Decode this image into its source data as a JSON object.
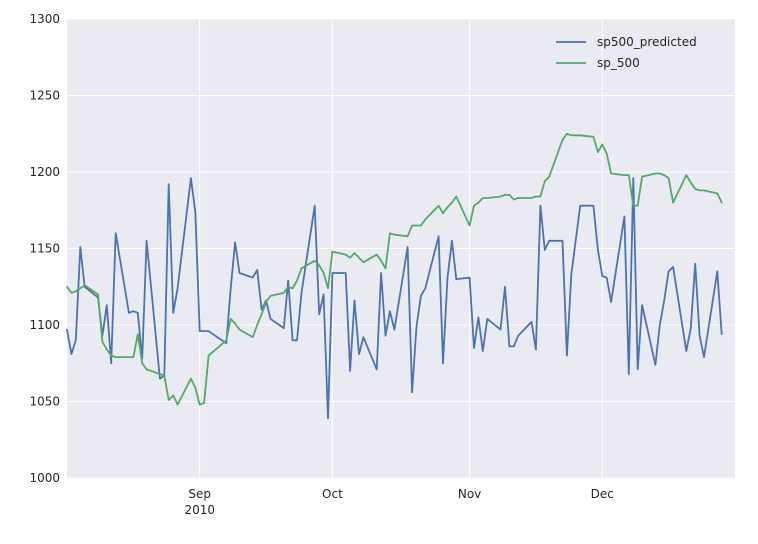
{
  "chart_data": {
    "type": "line",
    "title": "",
    "xlabel": "",
    "ylabel": "",
    "ylim": [
      1000,
      1300
    ],
    "yticks": [
      1000,
      1050,
      1100,
      1150,
      1200,
      1250,
      1300
    ],
    "xlim": [
      "2010-08-02",
      "2010-12-31"
    ],
    "xticks": [
      {
        "date": "2010-09-01",
        "label": "Sep",
        "sublabel": "2010"
      },
      {
        "date": "2010-10-01",
        "label": "Oct",
        "sublabel": ""
      },
      {
        "date": "2010-11-01",
        "label": "Nov",
        "sublabel": ""
      },
      {
        "date": "2010-12-01",
        "label": "Dec",
        "sublabel": ""
      }
    ],
    "grid": true,
    "legend_position": "top-right",
    "series": [
      {
        "name": "sp500_predicted",
        "color": "#4c72b0",
        "points": [
          [
            "2010-08-02",
            1097
          ],
          [
            "2010-08-03",
            1081
          ],
          [
            "2010-08-04",
            1090
          ],
          [
            "2010-08-05",
            1151
          ],
          [
            "2010-08-06",
            1125
          ],
          [
            "2010-08-09",
            1118
          ],
          [
            "2010-08-10",
            1093
          ],
          [
            "2010-08-11",
            1113
          ],
          [
            "2010-08-12",
            1075
          ],
          [
            "2010-08-13",
            1160
          ],
          [
            "2010-08-16",
            1108
          ],
          [
            "2010-08-17",
            1109
          ],
          [
            "2010-08-18",
            1108
          ],
          [
            "2010-08-19",
            1078
          ],
          [
            "2010-08-20",
            1155
          ],
          [
            "2010-08-23",
            1065
          ],
          [
            "2010-08-24",
            1067
          ],
          [
            "2010-08-25",
            1192
          ],
          [
            "2010-08-26",
            1108
          ],
          [
            "2010-08-27",
            1124
          ],
          [
            "2010-08-30",
            1196
          ],
          [
            "2010-08-31",
            1174
          ],
          [
            "2010-09-01",
            1096
          ],
          [
            "2010-09-02",
            1096
          ],
          [
            "2010-09-03",
            1096
          ],
          [
            "2010-09-07",
            1088
          ],
          [
            "2010-09-08",
            1124
          ],
          [
            "2010-09-09",
            1154
          ],
          [
            "2010-09-10",
            1134
          ],
          [
            "2010-09-13",
            1131
          ],
          [
            "2010-09-14",
            1136
          ],
          [
            "2010-09-15",
            1110
          ],
          [
            "2010-09-16",
            1116
          ],
          [
            "2010-09-17",
            1104
          ],
          [
            "2010-09-20",
            1098
          ],
          [
            "2010-09-21",
            1129
          ],
          [
            "2010-09-22",
            1090
          ],
          [
            "2010-09-23",
            1090
          ],
          [
            "2010-09-24",
            1121
          ],
          [
            "2010-09-27",
            1178
          ],
          [
            "2010-09-28",
            1107
          ],
          [
            "2010-09-29",
            1120
          ],
          [
            "2010-09-30",
            1039
          ],
          [
            "2010-10-01",
            1134
          ],
          [
            "2010-10-04",
            1134
          ],
          [
            "2010-10-05",
            1070
          ],
          [
            "2010-10-06",
            1116
          ],
          [
            "2010-10-07",
            1081
          ],
          [
            "2010-10-08",
            1092
          ],
          [
            "2010-10-11",
            1071
          ],
          [
            "2010-10-12",
            1134
          ],
          [
            "2010-10-13",
            1093
          ],
          [
            "2010-10-14",
            1109
          ],
          [
            "2010-10-15",
            1097
          ],
          [
            "2010-10-18",
            1151
          ],
          [
            "2010-10-19",
            1056
          ],
          [
            "2010-10-20",
            1099
          ],
          [
            "2010-10-21",
            1119
          ],
          [
            "2010-10-22",
            1124
          ],
          [
            "2010-10-25",
            1158
          ],
          [
            "2010-10-26",
            1075
          ],
          [
            "2010-10-27",
            1131
          ],
          [
            "2010-10-28",
            1155
          ],
          [
            "2010-10-29",
            1130
          ],
          [
            "2010-11-01",
            1131
          ],
          [
            "2010-11-02",
            1085
          ],
          [
            "2010-11-03",
            1105
          ],
          [
            "2010-11-04",
            1083
          ],
          [
            "2010-11-05",
            1104
          ],
          [
            "2010-11-08",
            1097
          ],
          [
            "2010-11-09",
            1125
          ],
          [
            "2010-11-10",
            1086
          ],
          [
            "2010-11-11",
            1086
          ],
          [
            "2010-11-12",
            1093
          ],
          [
            "2010-11-15",
            1102
          ],
          [
            "2010-11-16",
            1084
          ],
          [
            "2010-11-17",
            1178
          ],
          [
            "2010-11-18",
            1149
          ],
          [
            "2010-11-19",
            1155
          ],
          [
            "2010-11-22",
            1155
          ],
          [
            "2010-11-23",
            1080
          ],
          [
            "2010-11-24",
            1133
          ],
          [
            "2010-11-26",
            1178
          ],
          [
            "2010-11-29",
            1178
          ],
          [
            "2010-11-30",
            1149
          ],
          [
            "2010-12-01",
            1132
          ],
          [
            "2010-12-02",
            1131
          ],
          [
            "2010-12-03",
            1115
          ],
          [
            "2010-12-06",
            1171
          ],
          [
            "2010-12-07",
            1068
          ],
          [
            "2010-12-08",
            1196
          ],
          [
            "2010-12-09",
            1071
          ],
          [
            "2010-12-10",
            1113
          ],
          [
            "2010-12-13",
            1074
          ],
          [
            "2010-12-14",
            1100
          ],
          [
            "2010-12-15",
            1116
          ],
          [
            "2010-12-16",
            1135
          ],
          [
            "2010-12-17",
            1138
          ],
          [
            "2010-12-20",
            1083
          ],
          [
            "2010-12-21",
            1098
          ],
          [
            "2010-12-22",
            1140
          ],
          [
            "2010-12-23",
            1093
          ],
          [
            "2010-12-24",
            1079
          ],
          [
            "2010-12-27",
            1135
          ],
          [
            "2010-12-28",
            1094
          ]
        ]
      },
      {
        "name": "sp_500",
        "color": "#55a868",
        "points": [
          [
            "2010-08-02",
            1125
          ],
          [
            "2010-08-03",
            1121
          ],
          [
            "2010-08-04",
            1122
          ],
          [
            "2010-08-05",
            1124
          ],
          [
            "2010-08-06",
            1126
          ],
          [
            "2010-08-09",
            1120
          ],
          [
            "2010-08-10",
            1089
          ],
          [
            "2010-08-11",
            1084
          ],
          [
            "2010-08-12",
            1080
          ],
          [
            "2010-08-13",
            1079
          ],
          [
            "2010-08-16",
            1079
          ],
          [
            "2010-08-17",
            1079
          ],
          [
            "2010-08-18",
            1094
          ],
          [
            "2010-08-19",
            1075
          ],
          [
            "2010-08-20",
            1071
          ],
          [
            "2010-08-23",
            1068
          ],
          [
            "2010-08-24",
            1067
          ],
          [
            "2010-08-25",
            1051
          ],
          [
            "2010-08-26",
            1054
          ],
          [
            "2010-08-27",
            1048
          ],
          [
            "2010-08-30",
            1065
          ],
          [
            "2010-08-31",
            1059
          ],
          [
            "2010-09-01",
            1048
          ],
          [
            "2010-09-02",
            1049
          ],
          [
            "2010-09-03",
            1080
          ],
          [
            "2010-09-07",
            1090
          ],
          [
            "2010-09-08",
            1104
          ],
          [
            "2010-09-09",
            1101
          ],
          [
            "2010-09-10",
            1097
          ],
          [
            "2010-09-13",
            1092
          ],
          [
            "2010-09-14",
            1100
          ],
          [
            "2010-09-15",
            1107
          ],
          [
            "2010-09-16",
            1115
          ],
          [
            "2010-09-17",
            1119
          ],
          [
            "2010-09-20",
            1121
          ],
          [
            "2010-09-21",
            1125
          ],
          [
            "2010-09-22",
            1124
          ],
          [
            "2010-09-23",
            1129
          ],
          [
            "2010-09-24",
            1137
          ],
          [
            "2010-09-27",
            1142
          ],
          [
            "2010-09-28",
            1139
          ],
          [
            "2010-09-29",
            1134
          ],
          [
            "2010-09-30",
            1124
          ],
          [
            "2010-10-01",
            1148
          ],
          [
            "2010-10-04",
            1146
          ],
          [
            "2010-10-05",
            1144
          ],
          [
            "2010-10-06",
            1147
          ],
          [
            "2010-10-07",
            1144
          ],
          [
            "2010-10-08",
            1141
          ],
          [
            "2010-10-11",
            1146
          ],
          [
            "2010-10-12",
            1142
          ],
          [
            "2010-10-13",
            1137
          ],
          [
            "2010-10-14",
            1160
          ],
          [
            "2010-10-15",
            1159
          ],
          [
            "2010-10-18",
            1158
          ],
          [
            "2010-10-19",
            1165
          ],
          [
            "2010-10-20",
            1165
          ],
          [
            "2010-10-21",
            1165
          ],
          [
            "2010-10-22",
            1169
          ],
          [
            "2010-10-25",
            1178
          ],
          [
            "2010-10-26",
            1173
          ],
          [
            "2010-10-27",
            1177
          ],
          [
            "2010-10-28",
            1180
          ],
          [
            "2010-10-29",
            1184
          ],
          [
            "2010-11-01",
            1165
          ],
          [
            "2010-11-02",
            1178
          ],
          [
            "2010-11-03",
            1180
          ],
          [
            "2010-11-04",
            1183
          ],
          [
            "2010-11-05",
            1183
          ],
          [
            "2010-11-08",
            1184
          ],
          [
            "2010-11-09",
            1185
          ],
          [
            "2010-11-10",
            1185
          ],
          [
            "2010-11-11",
            1182
          ],
          [
            "2010-11-12",
            1183
          ],
          [
            "2010-11-15",
            1183
          ],
          [
            "2010-11-16",
            1184
          ],
          [
            "2010-11-17",
            1184
          ],
          [
            "2010-11-18",
            1194
          ],
          [
            "2010-11-19",
            1197
          ],
          [
            "2010-11-22",
            1221
          ],
          [
            "2010-11-23",
            1225
          ],
          [
            "2010-11-24",
            1224
          ],
          [
            "2010-11-26",
            1224
          ],
          [
            "2010-11-29",
            1223
          ],
          [
            "2010-11-30",
            1213
          ],
          [
            "2010-12-01",
            1218
          ],
          [
            "2010-12-02",
            1212
          ],
          [
            "2010-12-03",
            1199
          ],
          [
            "2010-12-06",
            1198
          ],
          [
            "2010-12-07",
            1198
          ],
          [
            "2010-12-08",
            1178
          ],
          [
            "2010-12-09",
            1178
          ],
          [
            "2010-12-10",
            1197
          ],
          [
            "2010-12-13",
            1199
          ],
          [
            "2010-12-14",
            1199
          ],
          [
            "2010-12-15",
            1198
          ],
          [
            "2010-12-16",
            1196
          ],
          [
            "2010-12-17",
            1180
          ],
          [
            "2010-12-20",
            1198
          ],
          [
            "2010-12-21",
            1193
          ],
          [
            "2010-12-22",
            1189
          ],
          [
            "2010-12-23",
            1188
          ],
          [
            "2010-12-24",
            1188
          ],
          [
            "2010-12-27",
            1186
          ],
          [
            "2010-12-28",
            1180
          ]
        ]
      }
    ]
  }
}
